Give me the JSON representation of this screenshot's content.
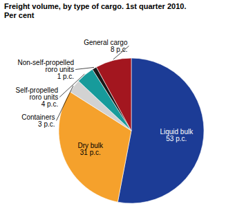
{
  "chart_data": {
    "type": "pie",
    "title": "Freight volume, by type of cargo. 1st quarter 2010.",
    "subtitle": "Per cent",
    "categories": [
      "Liquid bulk",
      "Dry bulk",
      "Containers",
      "Self-propelled\nroro units",
      "Non-self-propelled\nroro units",
      "General cargo"
    ],
    "values": [
      53,
      31,
      3,
      4,
      1,
      8
    ],
    "value_labels": [
      "53 p.c.",
      "31 p.c.",
      "3 p.c.",
      "4 p.c.",
      "1 p.c.",
      "8 p.c."
    ],
    "colors": [
      "#1c3c96",
      "#f5a12c",
      "#d2d2d2",
      "#179b9b",
      "#1a1a1a",
      "#a3161f"
    ],
    "data_labels": true
  }
}
